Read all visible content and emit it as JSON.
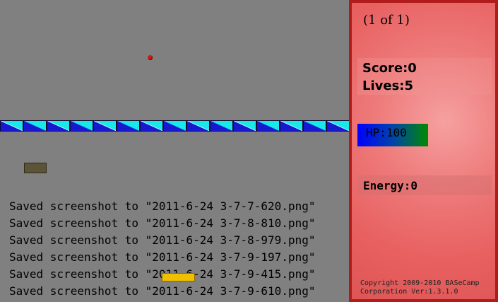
{
  "game": {
    "log_lines": [
      "Saved screenshot to \"2011-6-24 3-7-7-620.png\"",
      "Saved screenshot to \"2011-6-24 3-7-8-810.png\"",
      "Saved screenshot to \"2011-6-24 3-7-8-979.png\"",
      "Saved screenshot to \"2011-6-24 3-7-9-197.png\"",
      "Saved screenshot to \"2011-6-24 3-7-9-415.png\"",
      "Saved screenshot to \"2011-6-24 3-7-9-610.png\""
    ],
    "brick_count": 15,
    "colors": {
      "playfield": "#808080",
      "ball": "#d01818",
      "paddle": "#5c5438",
      "brick_light": "#18e8e8",
      "brick_dark": "#1818d0"
    }
  },
  "panel": {
    "level": "(1 of 1)",
    "score": "Score:0",
    "lives": "Lives:5",
    "hp": "HP:100",
    "hp_fraction": 1.0,
    "energy": "Energy:0",
    "copyright_line1": "Copyright 2009-2010 BASeCamp",
    "copyright_line2": "Corporation Ver:1.3.1.0",
    "colors": {
      "border": "#b01c1c",
      "background": "#e86060"
    }
  }
}
